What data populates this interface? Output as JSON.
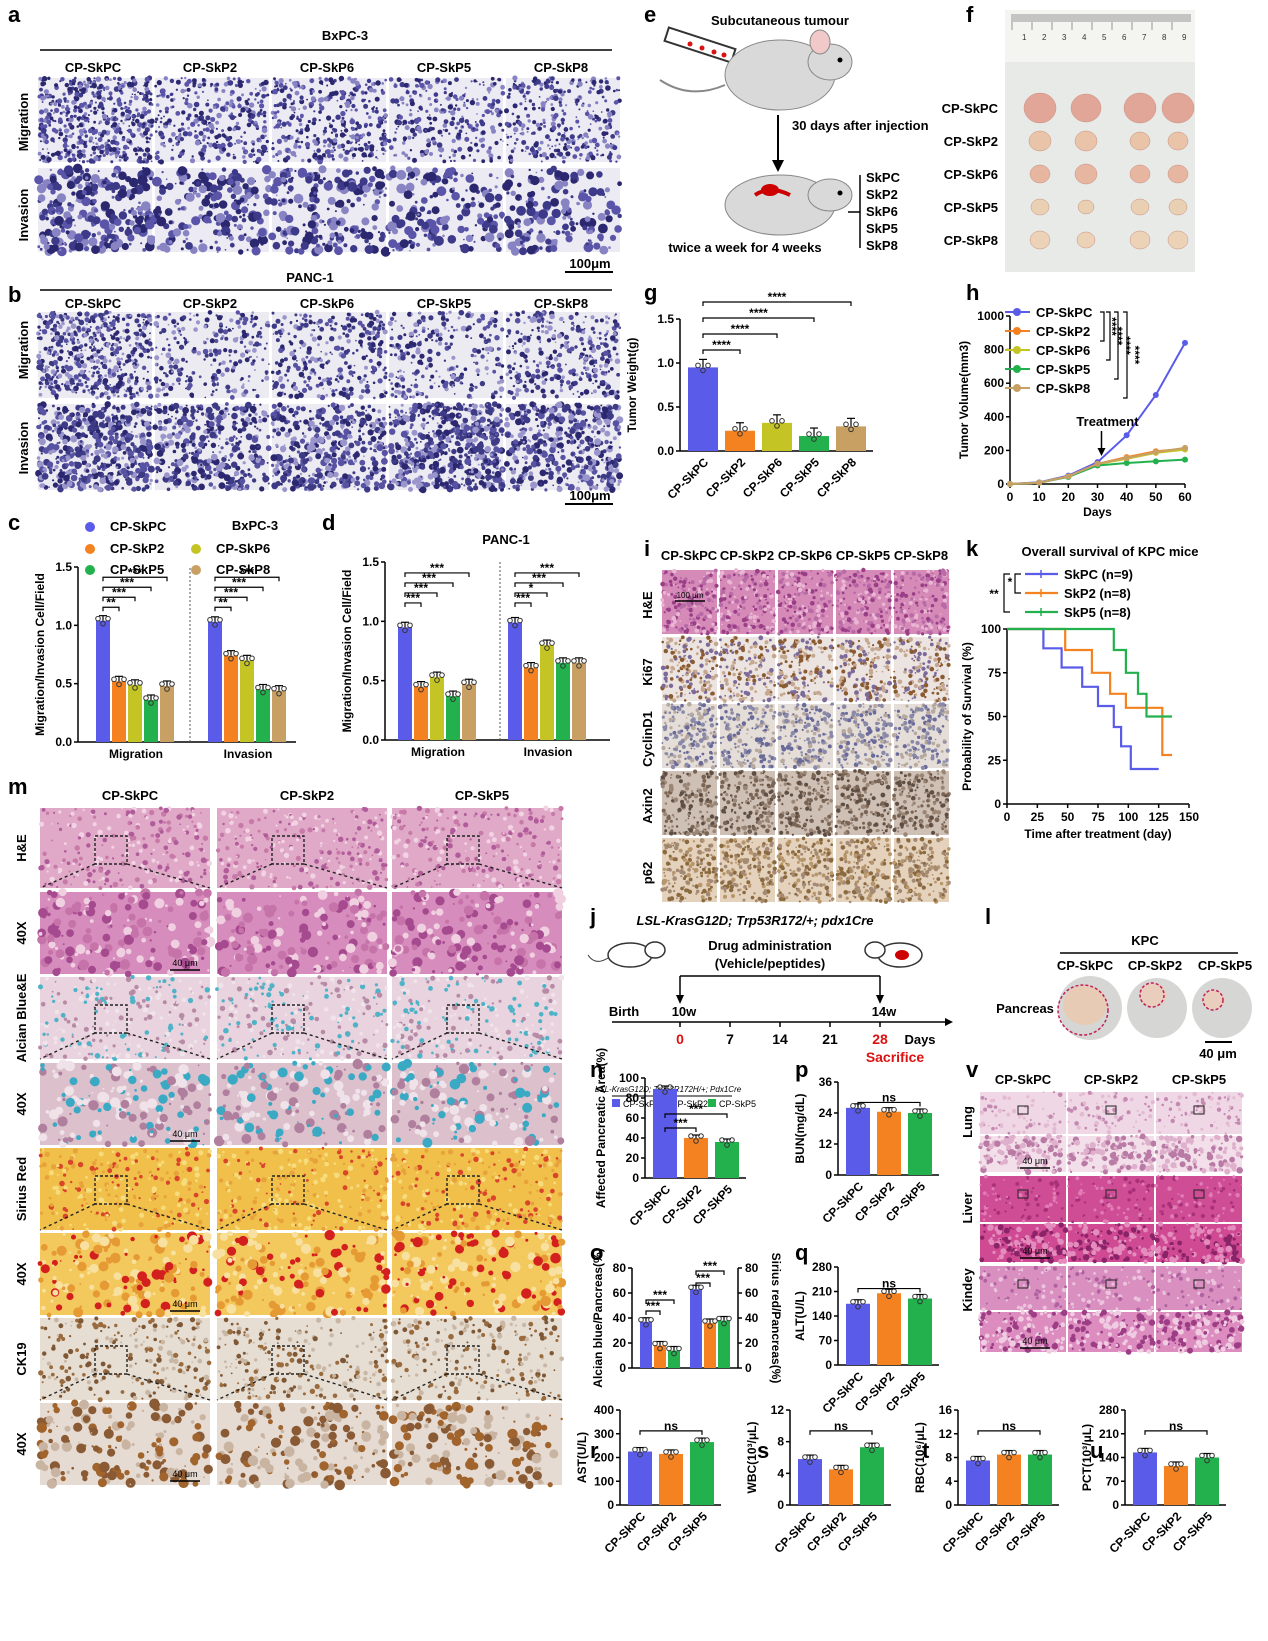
{
  "panel_letters": [
    "a",
    "b",
    "c",
    "d",
    "e",
    "f",
    "g",
    "h",
    "i",
    "j",
    "k",
    "l",
    "m",
    "n",
    "o",
    "p",
    "q",
    "r",
    "s",
    "t",
    "u",
    "v"
  ],
  "a": {
    "title": "BxPC-3",
    "cols": [
      "CP-SkPC",
      "CP-SkP2",
      "CP-SkP6",
      "CP-SkP5",
      "CP-SkP8"
    ],
    "rows": [
      "Migration",
      "Invasion"
    ],
    "scale": "100μm"
  },
  "b": {
    "title": "PANC-1",
    "cols": [
      "CP-SkPC",
      "CP-SkP2",
      "CP-SkP6",
      "CP-SkP5",
      "CP-SkP8"
    ],
    "rows": [
      "Migration",
      "Invasion"
    ],
    "scale": "100μm"
  },
  "e": {
    "title": "Subcutaneous tumour",
    "arrow_label": "30 days after injection",
    "bottom": "twice a week for 4 weeks",
    "groups": [
      "SkPC",
      "SkP2",
      "SkP6",
      "SkP5",
      "SkP8"
    ]
  },
  "f": {
    "rows": [
      "CP-SkPC",
      "CP-SkP2",
      "CP-SkP6",
      "CP-SkP5",
      "CP-SkP8"
    ],
    "ruler": [
      "1",
      "2",
      "3",
      "4",
      "5",
      "6",
      "7",
      "8",
      "9"
    ]
  },
  "i": {
    "cols": [
      "CP-SkPC",
      "CP-SkP2",
      "CP-SkP6",
      "CP-SkP5",
      "CP-SkP8"
    ],
    "rows": [
      "H&E",
      "Ki67",
      "CyclinD1",
      "Axin2",
      "p62"
    ],
    "scale": "100 μm"
  },
  "j": {
    "title": "LSL-KrasG12D; Trp53R172/+; pdx1Cre",
    "admin": "Drug administration",
    "admin2": "(Vehicle/peptides)",
    "birth": "Birth",
    "w10": "10w",
    "w14": "14w",
    "days": [
      "0",
      "7",
      "14",
      "21",
      "28"
    ],
    "days_label": "Days",
    "sacrifice": "Sacrifice"
  },
  "l": {
    "title": "KPC",
    "cols": [
      "CP-SkPC",
      "CP-SkP2",
      "CP-SkP5"
    ],
    "row": "Pancreas",
    "scale": "40 μm"
  },
  "m": {
    "cols": [
      "CP-SkPC",
      "CP-SkP2",
      "CP-SkP5"
    ],
    "rows": [
      "H&E",
      "40X",
      "Alcian Blue&E",
      "40X",
      "Sirius Red",
      "40X",
      "CK19",
      "40X"
    ],
    "scale": "40 μm"
  },
  "v": {
    "cols": [
      "CP-SkPC",
      "CP-SkP2",
      "CP-SkP5"
    ],
    "rows": [
      "Lung",
      "Liver",
      "Kindey"
    ],
    "scale": "40 μm"
  },
  "colors": {
    "SkPC": "#5b5bea",
    "SkP2": "#f58220",
    "SkP6": "#c4c424",
    "SkP5": "#22b14c",
    "SkP8": "#c8a064"
  },
  "chart_data": [
    {
      "id": "c",
      "type": "bar",
      "title": "BxPC-3",
      "ylabel": "Migration/Invasion Cell/Field",
      "ylim": [
        0,
        1.5
      ],
      "yticks": [
        "0.0",
        "0.5",
        "1.0",
        "1.5"
      ],
      "groups": [
        "Migration",
        "Invasion"
      ],
      "series": [
        {
          "name": "CP-SkPC",
          "values": [
            1.04,
            1.03
          ]
        },
        {
          "name": "CP-SkP2",
          "values": [
            0.52,
            0.74
          ]
        },
        {
          "name": "CP-SkP6",
          "values": [
            0.49,
            0.7
          ]
        },
        {
          "name": "CP-SkP5",
          "values": [
            0.36,
            0.45
          ]
        },
        {
          "name": "CP-SkP8",
          "values": [
            0.48,
            0.44
          ]
        }
      ],
      "sig": [
        [
          "**",
          "***",
          "***",
          "***"
        ],
        [
          "**",
          "***",
          "***",
          "***"
        ]
      ]
    },
    {
      "id": "d",
      "type": "bar",
      "title": "PANC-1",
      "ylabel": "Migration/Invasion Cell/Field",
      "ylim": [
        0,
        1.5
      ],
      "yticks": [
        "0.0",
        "0.5",
        "1.0",
        "1.5"
      ],
      "groups": [
        "Migration",
        "Invasion"
      ],
      "series": [
        {
          "name": "CP-SkPC",
          "values": [
            0.95,
            0.99
          ]
        },
        {
          "name": "CP-SkP2",
          "values": [
            0.45,
            0.61
          ]
        },
        {
          "name": "CP-SkP6",
          "values": [
            0.53,
            0.8
          ]
        },
        {
          "name": "CP-SkP5",
          "values": [
            0.37,
            0.65
          ]
        },
        {
          "name": "CP-SkP8",
          "values": [
            0.47,
            0.65
          ]
        }
      ],
      "sig": [
        [
          "***",
          "***",
          "***",
          "***"
        ],
        [
          "***",
          "*",
          "***",
          "***"
        ]
      ]
    },
    {
      "id": "g",
      "type": "bar",
      "ylabel": "Tumor Weight(g)",
      "ylim": [
        0,
        1.5
      ],
      "yticks": [
        "0.0",
        "0.5",
        "1.0",
        "1.5"
      ],
      "categories": [
        "CP-SkPC",
        "CP-SkP2",
        "CP-SkP6",
        "CP-SkP5",
        "CP-SkP8"
      ],
      "values": [
        0.95,
        0.23,
        0.32,
        0.17,
        0.28
      ],
      "sig": [
        "****",
        "****",
        "****",
        "****"
      ]
    },
    {
      "id": "h",
      "type": "line",
      "xlabel": "Days",
      "ylabel": "Tumor Volume(mm3)",
      "xlim": [
        0,
        60
      ],
      "ylim": [
        0,
        1000
      ],
      "xticks": [
        "0",
        "10",
        "20",
        "30",
        "40",
        "50",
        "60"
      ],
      "yticks": [
        "0",
        "200",
        "400",
        "600",
        "800",
        "1000"
      ],
      "x": [
        0,
        10,
        20,
        30,
        40,
        50,
        60
      ],
      "annotation": "Treatment",
      "sig": [
        "****",
        "****",
        "****",
        "****"
      ],
      "series": [
        {
          "name": "CP-SkPC",
          "values": [
            0,
            10,
            50,
            130,
            290,
            530,
            840
          ]
        },
        {
          "name": "CP-SkP2",
          "values": [
            0,
            8,
            45,
            120,
            160,
            195,
            210
          ]
        },
        {
          "name": "CP-SkP6",
          "values": [
            0,
            8,
            45,
            118,
            150,
            185,
            205
          ]
        },
        {
          "name": "CP-SkP5",
          "values": [
            0,
            8,
            42,
            110,
            125,
            135,
            145
          ]
        },
        {
          "name": "CP-SkP8",
          "values": [
            0,
            8,
            45,
            120,
            155,
            190,
            215
          ]
        }
      ]
    },
    {
      "id": "k",
      "type": "line",
      "title": "Overall survival of KPC mice",
      "xlabel": "Time after treatment (day)",
      "ylabel": "Probability of Survival (%)",
      "xlim": [
        0,
        150
      ],
      "ylim": [
        0,
        100
      ],
      "xticks": [
        "0",
        "25",
        "50",
        "75",
        "100",
        "125",
        "150"
      ],
      "yticks": [
        "0",
        "25",
        "50",
        "75",
        "100"
      ],
      "sig": [
        "*",
        "**"
      ],
      "series": [
        {
          "name": "SkPC (n=9)",
          "steps": [
            [
              0,
              100
            ],
            [
              30,
              100
            ],
            [
              30,
              89
            ],
            [
              45,
              89
            ],
            [
              45,
              78
            ],
            [
              62,
              78
            ],
            [
              62,
              67
            ],
            [
              75,
              67
            ],
            [
              75,
              56
            ],
            [
              88,
              56
            ],
            [
              88,
              44
            ],
            [
              94,
              44
            ],
            [
              94,
              33
            ],
            [
              102,
              33
            ],
            [
              102,
              20
            ],
            [
              125,
              20
            ]
          ]
        },
        {
          "name": "SkP2 (n=8)",
          "steps": [
            [
              0,
              100
            ],
            [
              48,
              100
            ],
            [
              48,
              88
            ],
            [
              70,
              88
            ],
            [
              70,
              75
            ],
            [
              85,
              75
            ],
            [
              85,
              63
            ],
            [
              98,
              63
            ],
            [
              98,
              55
            ],
            [
              128,
              55
            ],
            [
              128,
              28
            ],
            [
              136,
              28
            ]
          ]
        },
        {
          "name": "SkP5 (n=8)",
          "steps": [
            [
              0,
              100
            ],
            [
              88,
              100
            ],
            [
              88,
              88
            ],
            [
              98,
              88
            ],
            [
              98,
              75
            ],
            [
              108,
              75
            ],
            [
              108,
              63
            ],
            [
              115,
              63
            ],
            [
              115,
              50
            ],
            [
              136,
              50
            ]
          ]
        }
      ]
    },
    {
      "id": "n",
      "type": "bar",
      "ylabel": "Affected Pancreatic Area(%)",
      "ylim": [
        0,
        100
      ],
      "yticks": [
        "0",
        "20",
        "40",
        "60",
        "80",
        "100"
      ],
      "categories": [
        "CP-SkPC",
        "CP-SkP2",
        "CP-SkP5"
      ],
      "values": [
        89,
        40,
        36
      ],
      "sig": [
        "***",
        "***"
      ],
      "legend_title": "LSL-KrasG12D; Trp53R172H/+; Pdx1Cre"
    },
    {
      "id": "o",
      "type": "bar",
      "ylabel": "Alcian blue/Pancreas(%)",
      "ylabel2": "Sirius red/Pancreas(%)",
      "ylim": [
        0,
        80
      ],
      "yticks": [
        "0",
        "20",
        "40",
        "60",
        "80"
      ],
      "groups": [
        "Alcian blue",
        "Sirius red"
      ],
      "series": [
        {
          "name": "CP-SkPC",
          "values": [
            37,
            63
          ]
        },
        {
          "name": "CP-SkP2",
          "values": [
            18,
            36
          ]
        },
        {
          "name": "CP-SkP5",
          "values": [
            14,
            38
          ]
        }
      ],
      "sig": [
        [
          "***",
          "***"
        ],
        [
          "***",
          "***"
        ]
      ]
    },
    {
      "id": "p",
      "type": "bar",
      "ylabel": "BUN(mg/dL)",
      "ylim": [
        0,
        36
      ],
      "yticks": [
        "0",
        "12",
        "24",
        "36"
      ],
      "categories": [
        "CP-SkPC",
        "CP-SkP2",
        "CP-SkP5"
      ],
      "values": [
        26,
        24.5,
        24
      ],
      "sig": [
        "ns"
      ]
    },
    {
      "id": "q",
      "type": "bar",
      "ylabel": "ALT(U/L)",
      "ylim": [
        0,
        280
      ],
      "yticks": [
        "0",
        "70",
        "140",
        "210",
        "280"
      ],
      "categories": [
        "CP-SkPC",
        "CP-SkP2",
        "CP-SkP5"
      ],
      "values": [
        175,
        205,
        190
      ],
      "sig": [
        "ns"
      ]
    },
    {
      "id": "r",
      "type": "bar",
      "ylabel": "AST(U/L)",
      "ylim": [
        0,
        400
      ],
      "yticks": [
        "0",
        "100",
        "200",
        "300",
        "400"
      ],
      "categories": [
        "CP-SkPC",
        "CP-SkP2",
        "CP-SkP5"
      ],
      "values": [
        225,
        215,
        265
      ],
      "sig": [
        "ns"
      ]
    },
    {
      "id": "s",
      "type": "bar",
      "ylabel": "WBC(10³/μL)",
      "ylim": [
        0,
        12
      ],
      "yticks": [
        "0",
        "4",
        "8",
        "12"
      ],
      "categories": [
        "CP-SkPC",
        "CP-SkP2",
        "CP-SkP5"
      ],
      "values": [
        5.8,
        4.5,
        7.3
      ],
      "sig": [
        "ns"
      ]
    },
    {
      "id": "t",
      "type": "bar",
      "ylabel": "RBC(10⁶/μL)",
      "ylim": [
        0,
        16
      ],
      "yticks": [
        "0",
        "4",
        "8",
        "12",
        "16"
      ],
      "categories": [
        "CP-SkPC",
        "CP-SkP2",
        "CP-SkP5"
      ],
      "values": [
        7.5,
        8.5,
        8.5
      ],
      "sig": [
        "ns"
      ]
    },
    {
      "id": "u",
      "type": "bar",
      "ylabel": "PCT(10³/μL)",
      "ylim": [
        0,
        280
      ],
      "yticks": [
        "0",
        "70",
        "140",
        "210",
        "280"
      ],
      "categories": [
        "CP-SkPC",
        "CP-SkP2",
        "CP-SkP5"
      ],
      "values": [
        155,
        115,
        140
      ],
      "sig": [
        "ns"
      ]
    }
  ]
}
